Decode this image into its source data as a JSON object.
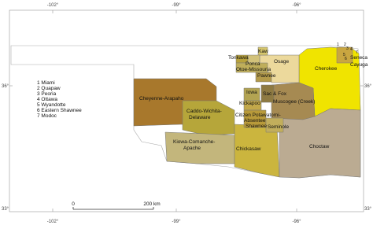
{
  "graticule": {
    "top": [
      "-102°",
      "-99°",
      "-96°"
    ],
    "bottom": [
      "-102°",
      "-99°",
      "-96°"
    ],
    "left": [
      "36°",
      "33°"
    ],
    "right": [
      "36°",
      "33°"
    ]
  },
  "legend": [
    "1 Miami",
    "2 Quapaw",
    "3 Peoria",
    "4 Ottawa",
    "5 Wyandotte",
    "6 Eastern Shawnee",
    "7 Modoc"
  ],
  "corner_numbers": [
    "1",
    "2",
    "3",
    "4",
    "5",
    "6",
    "7"
  ],
  "regions": {
    "kaw": [
      "Kaw"
    ],
    "tonkawa": [
      "Tonkawa"
    ],
    "ponca": [
      "Ponca"
    ],
    "osage": [
      "Osage"
    ],
    "otoe": [
      "Otoe-Missouria"
    ],
    "pawnee": [
      "Pawnee"
    ],
    "cherokee": [
      "Cherokee"
    ],
    "seneca": [
      "Seneca",
      "Cayuga"
    ],
    "iowa": [
      "Iowa"
    ],
    "sacfox": [
      "Sac & Fox"
    ],
    "cheyenne": [
      "Cheyenne-Arapaho"
    ],
    "kickapoo": [
      "Kickapoo"
    ],
    "creek": [
      "Muscogee (Creek)"
    ],
    "caddo": [
      "Caddo-Wichita-",
      "Delaware"
    ],
    "potawatomi": [
      "Citizen Potawatomi-",
      "Absentee",
      "Shawnee"
    ],
    "seminole": [
      "Seminole"
    ],
    "kiowa": [
      "Kiowa-Comanche-",
      "Apache"
    ],
    "chickasaw": [
      "Chickasaw"
    ],
    "choctaw": [
      "Choctaw"
    ]
  },
  "scale": {
    "start": "0",
    "end": "200 km"
  }
}
